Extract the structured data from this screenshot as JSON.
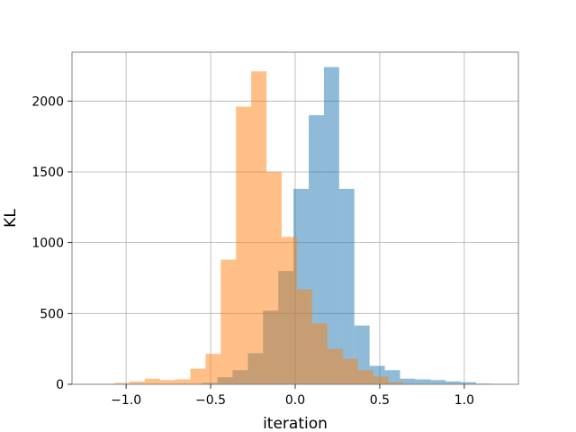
{
  "chart_data": {
    "type": "histogram",
    "title": "",
    "xlabel": "iteration",
    "ylabel": "KL",
    "xlim": [
      -1.32,
      1.32
    ],
    "ylim": [
      0,
      2345
    ],
    "grid": true,
    "legend": "none",
    "x_ticks": [
      -1.0,
      -0.5,
      0.0,
      0.5,
      1.0
    ],
    "x_tick_labels": [
      "−1.0",
      "−0.5",
      "0.0",
      "0.5",
      "1.0"
    ],
    "y_ticks": [
      0,
      500,
      1000,
      1500,
      2000
    ],
    "y_tick_labels": [
      "0",
      "500",
      "1000",
      "1500",
      "2000"
    ],
    "series": [
      {
        "color": "#1f77b4",
        "opacity": 0.5,
        "bins": [
          {
            "x0": -0.55,
            "x1": -0.46,
            "value": 10
          },
          {
            "x0": -0.46,
            "x1": -0.37,
            "value": 50
          },
          {
            "x0": -0.37,
            "x1": -0.28,
            "value": 100
          },
          {
            "x0": -0.28,
            "x1": -0.19,
            "value": 220
          },
          {
            "x0": -0.19,
            "x1": -0.1,
            "value": 520
          },
          {
            "x0": -0.1,
            "x1": -0.01,
            "value": 800
          },
          {
            "x0": -0.01,
            "x1": 0.08,
            "value": 1380
          },
          {
            "x0": 0.08,
            "x1": 0.17,
            "value": 1900
          },
          {
            "x0": 0.17,
            "x1": 0.26,
            "value": 2240
          },
          {
            "x0": 0.26,
            "x1": 0.35,
            "value": 1380
          },
          {
            "x0": 0.35,
            "x1": 0.44,
            "value": 415
          },
          {
            "x0": 0.44,
            "x1": 0.53,
            "value": 130
          },
          {
            "x0": 0.53,
            "x1": 0.62,
            "value": 100
          },
          {
            "x0": 0.62,
            "x1": 0.71,
            "value": 40
          },
          {
            "x0": 0.71,
            "x1": 0.8,
            "value": 35
          },
          {
            "x0": 0.8,
            "x1": 0.89,
            "value": 30
          },
          {
            "x0": 0.89,
            "x1": 0.98,
            "value": 20
          },
          {
            "x0": 0.98,
            "x1": 1.07,
            "value": 15
          },
          {
            "x0": 1.07,
            "x1": 1.16,
            "value": 5
          }
        ]
      },
      {
        "color": "#ff7f0e",
        "opacity": 0.5,
        "bins": [
          {
            "x0": -1.07,
            "x1": -0.98,
            "value": 10
          },
          {
            "x0": -0.98,
            "x1": -0.89,
            "value": 20
          },
          {
            "x0": -0.89,
            "x1": -0.8,
            "value": 40
          },
          {
            "x0": -0.8,
            "x1": -0.71,
            "value": 30
          },
          {
            "x0": -0.71,
            "x1": -0.62,
            "value": 35
          },
          {
            "x0": -0.62,
            "x1": -0.53,
            "value": 110
          },
          {
            "x0": -0.53,
            "x1": -0.44,
            "value": 215
          },
          {
            "x0": -0.44,
            "x1": -0.35,
            "value": 880
          },
          {
            "x0": -0.35,
            "x1": -0.26,
            "value": 1960
          },
          {
            "x0": -0.26,
            "x1": -0.17,
            "value": 2210
          },
          {
            "x0": -0.17,
            "x1": -0.08,
            "value": 1500
          },
          {
            "x0": -0.08,
            "x1": 0.01,
            "value": 1040
          },
          {
            "x0": 0.01,
            "x1": 0.1,
            "value": 670
          },
          {
            "x0": 0.1,
            "x1": 0.19,
            "value": 430
          },
          {
            "x0": 0.19,
            "x1": 0.28,
            "value": 250
          },
          {
            "x0": 0.28,
            "x1": 0.37,
            "value": 180
          },
          {
            "x0": 0.37,
            "x1": 0.46,
            "value": 100
          },
          {
            "x0": 0.46,
            "x1": 0.55,
            "value": 55
          },
          {
            "x0": 0.55,
            "x1": 0.64,
            "value": 15
          }
        ]
      }
    ]
  }
}
